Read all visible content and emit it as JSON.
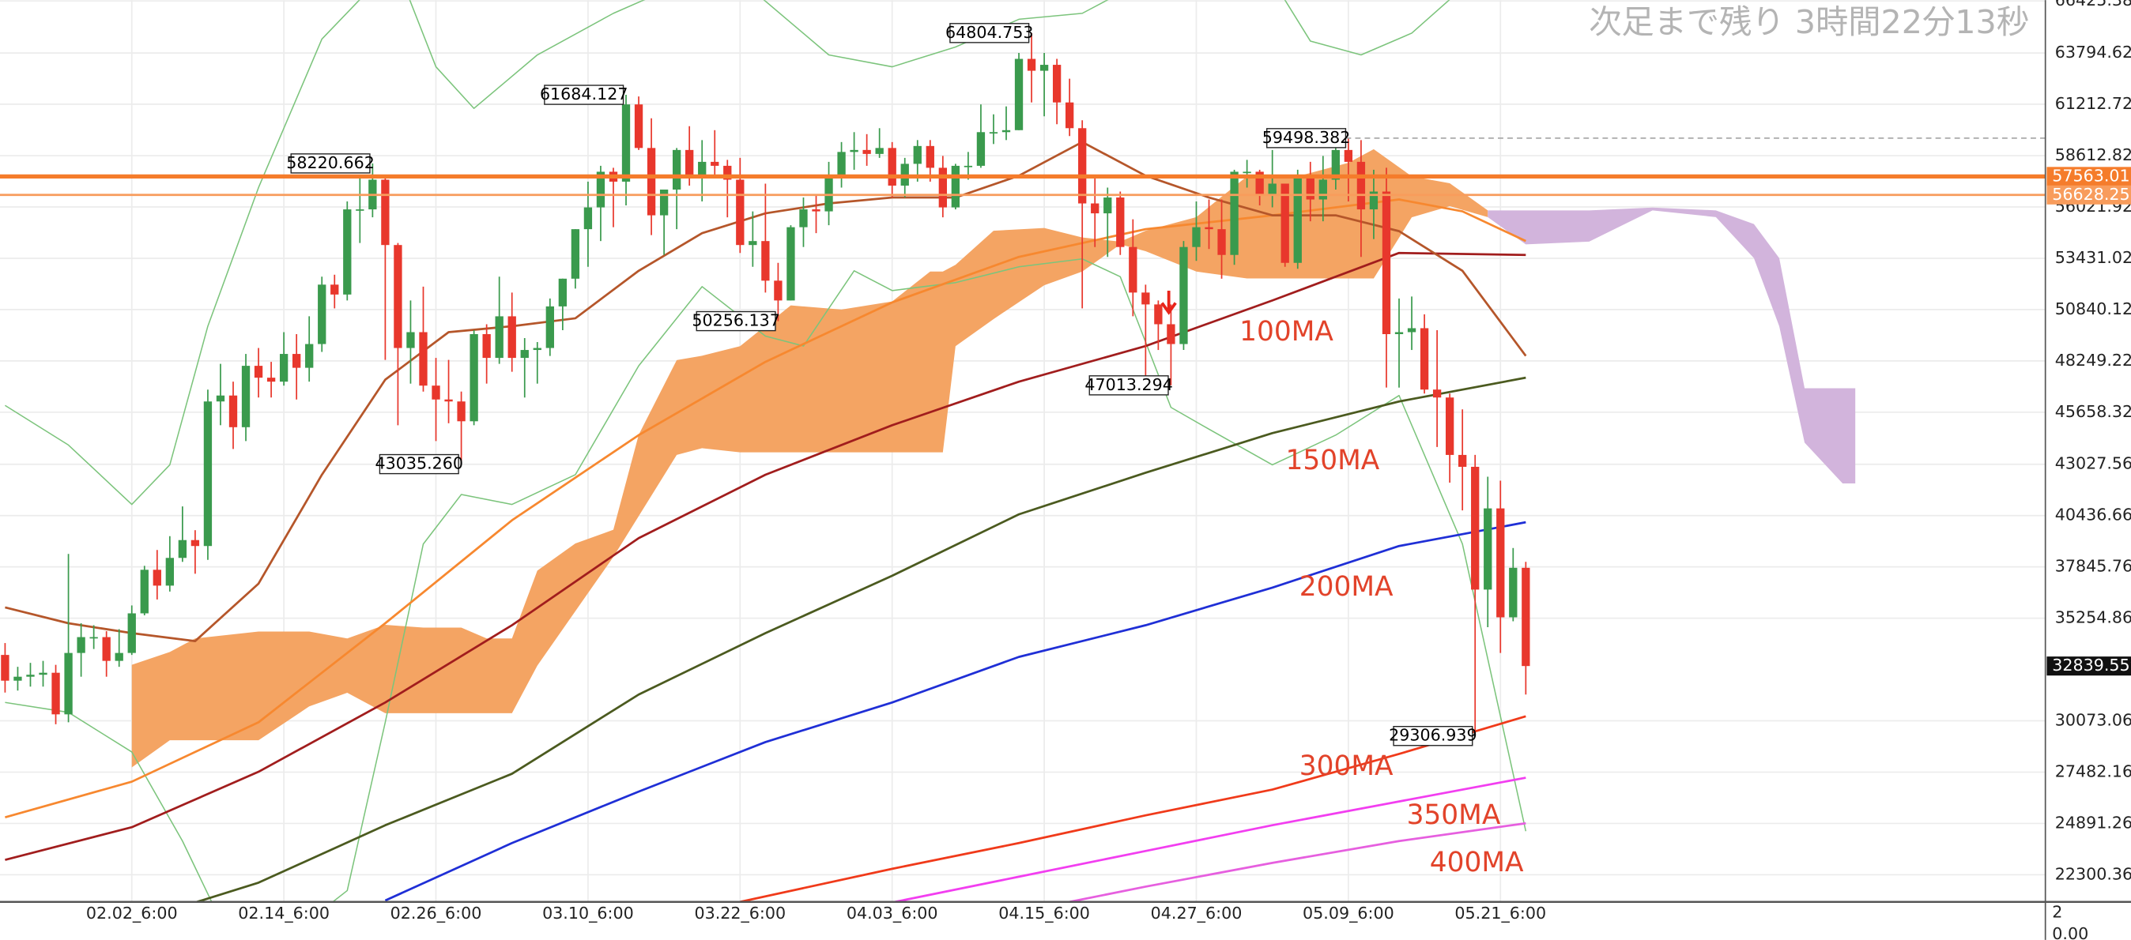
{
  "countdown": "次足まで残り 3時間22分13秒",
  "sub_pane": {
    "yticks": [
      2,
      {
        "value": 0,
        "label": "0.00"
      }
    ]
  },
  "chart_data": {
    "type": "candlestick",
    "up_color": "#3a9a4d",
    "down_color": "#e8372c",
    "grid": true,
    "xlim": [
      -0.4,
      161.0
    ],
    "ylim": [
      20928.6,
      66469.5
    ],
    "xticks": [
      {
        "value": 10,
        "label": "02.02_6:00"
      },
      {
        "value": 22,
        "label": "02.14_6:00"
      },
      {
        "value": 34,
        "label": "02.26_6:00"
      },
      {
        "value": 46,
        "label": "03.10_6:00"
      },
      {
        "value": 58,
        "label": "03.22_6:00"
      },
      {
        "value": 70,
        "label": "04.03_6:00"
      },
      {
        "value": 82,
        "label": "04.15_6:00"
      },
      {
        "value": 94,
        "label": "04.27_6:00"
      },
      {
        "value": 106,
        "label": "05.09_6:00"
      },
      {
        "value": 118,
        "label": "05.21_6:00"
      }
    ],
    "yticks": [
      {
        "value": 66425.38,
        "label": "66425.380"
      },
      {
        "value": 63794.62,
        "label": "63794.620"
      },
      {
        "value": 61212.72,
        "label": "61212.720"
      },
      {
        "value": 58612.82,
        "label": "58612.820"
      },
      {
        "value": 56021.92,
        "label": "56021.920"
      },
      {
        "value": 53431.02,
        "label": "53431.020"
      },
      {
        "value": 50840.12,
        "label": "50840.120"
      },
      {
        "value": 48249.22,
        "label": "48249.220"
      },
      {
        "value": 45658.32,
        "label": "45658.320"
      },
      {
        "value": 43027.56,
        "label": "43027.560"
      },
      {
        "value": 40436.66,
        "label": "40436.660"
      },
      {
        "value": 37845.76,
        "label": "37845.760"
      },
      {
        "value": 35254.86,
        "label": "35254.860"
      },
      {
        "value": 30073.06,
        "label": "30073.060"
      },
      {
        "value": 27482.16,
        "label": "27482.160"
      },
      {
        "value": 24891.26,
        "label": "24891.260"
      },
      {
        "value": 22300.36,
        "label": "22300.360"
      }
    ],
    "x": [
      0,
      1,
      2,
      3,
      4,
      5,
      6,
      7,
      8,
      9,
      10,
      11,
      12,
      13,
      14,
      15,
      16,
      17,
      18,
      19,
      20,
      21,
      22,
      23,
      24,
      25,
      26,
      27,
      28,
      29,
      30,
      31,
      32,
      33,
      34,
      35,
      36,
      37,
      38,
      39,
      40,
      41,
      42,
      43,
      44,
      45,
      46,
      47,
      48,
      49,
      50,
      51,
      52,
      53,
      54,
      55,
      56,
      57,
      58,
      59,
      60,
      61,
      62,
      63,
      64,
      65,
      66,
      67,
      68,
      69,
      70,
      71,
      72,
      73,
      74,
      75,
      76,
      77,
      78,
      79,
      80,
      81,
      82,
      83,
      84,
      85,
      86,
      87,
      88,
      89,
      90,
      91,
      92,
      93,
      94,
      95,
      96,
      97,
      98,
      99,
      100,
      101,
      102,
      103,
      104,
      105,
      106,
      107,
      108,
      109,
      110,
      111,
      112,
      113,
      114,
      115,
      116,
      117,
      118,
      119,
      120
    ],
    "open": [
      33400,
      32100,
      32300,
      32400,
      32500,
      30400,
      33500,
      34300,
      34300,
      33100,
      33500,
      35500,
      37700,
      36900,
      38300,
      39200,
      38900,
      46200,
      46500,
      44900,
      48000,
      47400,
      47200,
      48600,
      47900,
      49100,
      52100,
      51600,
      55900,
      55900,
      57400,
      54100,
      48900,
      49700,
      47000,
      46300,
      46200,
      45200,
      49600,
      48400,
      50500,
      48400,
      48800,
      48900,
      51000,
      52400,
      54900,
      56000,
      57800,
      57300,
      61200,
      59000,
      55600,
      56900,
      58900,
      57600,
      58300,
      58100,
      57400,
      54100,
      54300,
      52300,
      51300,
      55000,
      55900,
      55800,
      57600,
      58800,
      58900,
      58700,
      59000,
      57100,
      58200,
      59100,
      58000,
      56000,
      58100,
      58100,
      59800,
      59800,
      59900,
      63500,
      62900,
      63200,
      61300,
      60000,
      56200,
      55700,
      56500,
      54000,
      51700,
      51100,
      50100,
      49100,
      54000,
      55000,
      54900,
      53600,
      57800,
      57800,
      56600,
      57200,
      53200,
      57500,
      56400,
      57400,
      58900,
      58300,
      55900,
      56800,
      49600,
      49700,
      49900,
      46800,
      46400,
      43500,
      42900,
      36700,
      40800,
      35300,
      37800
    ],
    "high": [
      34000,
      32800,
      33000,
      33100,
      32900,
      38500,
      35000,
      34900,
      34600,
      34700,
      35900,
      37900,
      38700,
      39400,
      40900,
      39700,
      46800,
      48100,
      47200,
      48600,
      48900,
      48200,
      49700,
      49600,
      50500,
      52500,
      52600,
      56300,
      57500,
      58220.662,
      57500,
      54200,
      51300,
      52000,
      48400,
      48300,
      46700,
      49800,
      50100,
      52500,
      51700,
      49400,
      49200,
      51400,
      52400,
      54900,
      57300,
      58100,
      58000,
      61684.127,
      61600,
      60500,
      56900,
      59000,
      60100,
      59400,
      59900,
      58400,
      58500,
      55800,
      57200,
      53200,
      55100,
      56500,
      56600,
      58300,
      59300,
      59800,
      59700,
      60000,
      59300,
      58500,
      59400,
      59400,
      58600,
      58200,
      58800,
      61200,
      60700,
      61100,
      63800,
      64804.753,
      63800,
      63500,
      62500,
      60400,
      57500,
      57000,
      56800,
      55400,
      52100,
      51300,
      51100,
      54300,
      56300,
      56400,
      56400,
      57900,
      58400,
      57900,
      58900,
      57200,
      57900,
      58300,
      58600,
      59400,
      59498.382,
      59400,
      57900,
      58000,
      51400,
      51500,
      50600,
      49800,
      46600,
      45800,
      43500,
      42400,
      42200,
      38800,
      38100
    ],
    "low": [
      31500,
      31600,
      31800,
      31800,
      29900,
      30000,
      32300,
      33700,
      32300,
      32800,
      33400,
      35400,
      36200,
      36600,
      38100,
      37500,
      38200,
      45000,
      43800,
      44200,
      46400,
      46400,
      47000,
      46300,
      47200,
      48700,
      50900,
      51300,
      54200,
      55500,
      48300,
      45000,
      47100,
      46700,
      44200,
      45100,
      43035.26,
      45000,
      47100,
      48100,
      47700,
      46400,
      47100,
      48500,
      49800,
      51900,
      53000,
      54300,
      55000,
      56100,
      58900,
      54600,
      53600,
      54900,
      57100,
      56300,
      57500,
      55500,
      53700,
      53000,
      51700,
      50256.137,
      51300,
      54000,
      54700,
      55100,
      57000,
      57900,
      58100,
      58500,
      56500,
      56500,
      57300,
      57300,
      55500,
      55900,
      57400,
      58000,
      59200,
      59400,
      59900,
      61300,
      60600,
      60200,
      59600,
      50900,
      54000,
      53500,
      53600,
      50500,
      47500,
      48800,
      47013.294,
      48800,
      53300,
      53900,
      52400,
      53100,
      57000,
      56100,
      56000,
      53000,
      52900,
      55300,
      55300,
      56900,
      56300,
      53500,
      54400,
      46900,
      46900,
      48800,
      46600,
      43900,
      42100,
      40700,
      29306.939,
      34800,
      33500,
      35100,
      31400
    ],
    "close": [
      32100,
      32300,
      32400,
      32500,
      30400,
      33500,
      34300,
      34300,
      33100,
      33500,
      35500,
      37700,
      36900,
      38300,
      39200,
      38900,
      46200,
      46500,
      44900,
      48000,
      47400,
      47200,
      48600,
      47900,
      49100,
      52100,
      51600,
      55900,
      55900,
      57400,
      54100,
      48900,
      49700,
      47000,
      46300,
      46200,
      45200,
      49600,
      48400,
      50500,
      48400,
      48800,
      48900,
      51000,
      52400,
      54900,
      56000,
      57800,
      57300,
      61200,
      59000,
      55600,
      56900,
      58900,
      57600,
      58300,
      58100,
      57400,
      54100,
      54300,
      52300,
      51300,
      55000,
      55900,
      55800,
      57600,
      58800,
      58900,
      58700,
      59000,
      57100,
      58200,
      59100,
      58000,
      56000,
      58100,
      58100,
      59800,
      59800,
      59900,
      63500,
      62900,
      63200,
      61300,
      60000,
      56200,
      55700,
      56500,
      54000,
      51700,
      51100,
      50100,
      49100,
      54000,
      55000,
      54900,
      53600,
      57800,
      57800,
      56600,
      57200,
      53200,
      57500,
      56400,
      57400,
      58900,
      58300,
      55900,
      56800,
      49600,
      49700,
      49900,
      46800,
      46400,
      43500,
      42900,
      36700,
      40800,
      35300,
      37800,
      32839.559
    ],
    "annotations": [
      {
        "x": 29,
        "value": 58220.662
      },
      {
        "x": 36,
        "value": 43035.26,
        "label": "43035.260"
      },
      {
        "x": 49,
        "value": 61684.127
      },
      {
        "x": 61,
        "value": 50256.137
      },
      {
        "x": 81,
        "value": 64804.753
      },
      {
        "x": 92,
        "value": 47013.294
      },
      {
        "x": 106,
        "value": 59498.382
      },
      {
        "x": 116,
        "value": 29306.939
      }
    ],
    "hlines": [
      {
        "value": 57563.016,
        "color": "#f57c2b"
      },
      {
        "value": 56628.255,
        "color": "#f89c5c"
      }
    ],
    "cloud": [
      {
        "color": "#f4a463",
        "x": [
          10,
          13,
          15,
          20,
          24,
          27,
          30,
          33,
          36,
          38,
          40,
          42,
          45,
          48,
          50,
          53,
          55,
          58,
          62,
          66,
          70,
          73,
          74,
          75,
          78,
          82,
          85,
          88,
          90,
          94,
          98,
          102,
          106,
          108,
          111,
          114,
          117
        ],
        "upper": [
          32900,
          33550,
          34230,
          34580,
          34580,
          34230,
          34920,
          34780,
          34780,
          34230,
          34230,
          37660,
          39030,
          39720,
          44520,
          48290,
          48510,
          48990,
          51050,
          50840,
          51250,
          52760,
          52760,
          53100,
          54820,
          54960,
          54480,
          54270,
          54820,
          55510,
          57570,
          57570,
          58250,
          58940,
          57570,
          57220,
          55850
        ],
        "lower": [
          27720,
          29090,
          29090,
          29090,
          30800,
          31490,
          30460,
          30460,
          30460,
          30460,
          30460,
          32860,
          35610,
          38350,
          40410,
          43500,
          43840,
          43630,
          43630,
          43630,
          43630,
          43630,
          43630,
          48990,
          50360,
          52070,
          52760,
          54130,
          53790,
          52760,
          52410,
          52410,
          52410,
          52410,
          55500,
          56060,
          55510
        ]
      },
      {
        "color": "#d2b4dc",
        "x": [
          117,
          120,
          125,
          130,
          135,
          138,
          140,
          142,
          145,
          146
        ],
        "upper": [
          55850,
          55850,
          55850,
          55990,
          55850,
          55160,
          53440,
          46870,
          46870,
          46870
        ],
        "lower": [
          55510,
          54130,
          54270,
          55850,
          55510,
          53440,
          50000,
          44120,
          42060,
          42060
        ]
      }
    ],
    "bollinger": {
      "color": "#7cc47c",
      "upper": {
        "x": [
          0,
          5,
          10,
          13,
          16,
          20,
          25,
          28,
          31,
          34,
          37,
          42,
          48,
          53,
          58,
          65,
          70,
          75,
          80,
          85,
          90,
          95,
          100,
          103,
          107,
          111,
          114,
          120
        ],
        "values": [
          46000,
          44000,
          41000,
          43000,
          50000,
          57000,
          64500,
          66500,
          68000,
          63100,
          61000,
          63700,
          65800,
          67200,
          67500,
          63700,
          63100,
          64100,
          65500,
          65800,
          67500,
          68500,
          67500,
          64400,
          63700,
          64800,
          66500,
          69000
        ]
      },
      "lower": {
        "x": [
          0,
          5,
          10,
          14,
          17,
          22,
          27,
          30,
          33,
          36,
          40,
          45,
          50,
          55,
          60,
          63,
          67,
          70,
          75,
          80,
          85,
          88,
          92,
          95,
          100,
          105,
          110,
          115,
          120
        ],
        "values": [
          31000,
          30500,
          28500,
          24000,
          20000,
          19000,
          21500,
          30000,
          39000,
          41500,
          41000,
          42500,
          48000,
          52000,
          49500,
          49000,
          52800,
          51800,
          52200,
          53000,
          53400,
          52500,
          45900,
          44800,
          43000,
          44500,
          46500,
          39000,
          24500
        ]
      }
    },
    "series": [
      {
        "name": "100MA",
        "color": "#a11d1d",
        "x": [
          0,
          10,
          20,
          30,
          40,
          50,
          60,
          70,
          80,
          90,
          100,
          110,
          120
        ],
        "values": [
          23050,
          24700,
          27500,
          31000,
          34900,
          39300,
          42500,
          45000,
          47200,
          49000,
          51300,
          53700,
          53600
        ]
      },
      {
        "name": "150MA",
        "color": "#4b5a1f",
        "x": [
          15,
          20,
          30,
          40,
          50,
          60,
          70,
          80,
          90,
          100,
          110,
          120
        ],
        "values": [
          20900,
          21900,
          24800,
          27400,
          31400,
          34500,
          37400,
          40500,
          42600,
          44600,
          46200,
          47400
        ]
      },
      {
        "name": "200MA",
        "color": "#1f2fd6",
        "x": [
          30,
          40,
          50,
          60,
          70,
          80,
          90,
          100,
          110,
          120
        ],
        "values": [
          21000,
          23900,
          26500,
          29000,
          31000,
          33300,
          34900,
          36800,
          38900,
          40100
        ]
      },
      {
        "name": "300MA",
        "color": "#f03a1a",
        "x": [
          58,
          70,
          80,
          90,
          100,
          110,
          120
        ],
        "values": [
          20930,
          22600,
          23900,
          25300,
          26600,
          28400,
          30300
        ]
      },
      {
        "name": "350MA",
        "color": "#f23ef0",
        "x": [
          70,
          80,
          90,
          100,
          110,
          120
        ],
        "values": [
          20900,
          22200,
          23500,
          24800,
          26000,
          27200
        ]
      },
      {
        "name": "400MA",
        "color": "#e65fdf",
        "x": [
          84,
          90,
          100,
          110,
          120
        ],
        "values": [
          20930,
          21700,
          22900,
          24000,
          24900
        ]
      },
      {
        "color": "#f7882f",
        "x": [
          0,
          10,
          20,
          30,
          40,
          50,
          60,
          70,
          80,
          90,
          100,
          110,
          115,
          120
        ],
        "values": [
          25200,
          27000,
          30000,
          35000,
          40200,
          44500,
          48200,
          51200,
          53500,
          54900,
          55600,
          56400,
          55800,
          54300
        ]
      },
      {
        "color": "#b5562a",
        "x": [
          0,
          5,
          10,
          15,
          20,
          25,
          30,
          35,
          40,
          45,
          50,
          55,
          60,
          65,
          70,
          75,
          80,
          85,
          90,
          95,
          100,
          105,
          110,
          115,
          120
        ],
        "values": [
          35800,
          35000,
          34500,
          34100,
          37000,
          42500,
          47300,
          49700,
          50000,
          50400,
          52800,
          54700,
          55700,
          56200,
          56500,
          56500,
          57600,
          59300,
          57600,
          56500,
          55600,
          55600,
          54800,
          52800,
          48500
        ]
      }
    ]
  }
}
